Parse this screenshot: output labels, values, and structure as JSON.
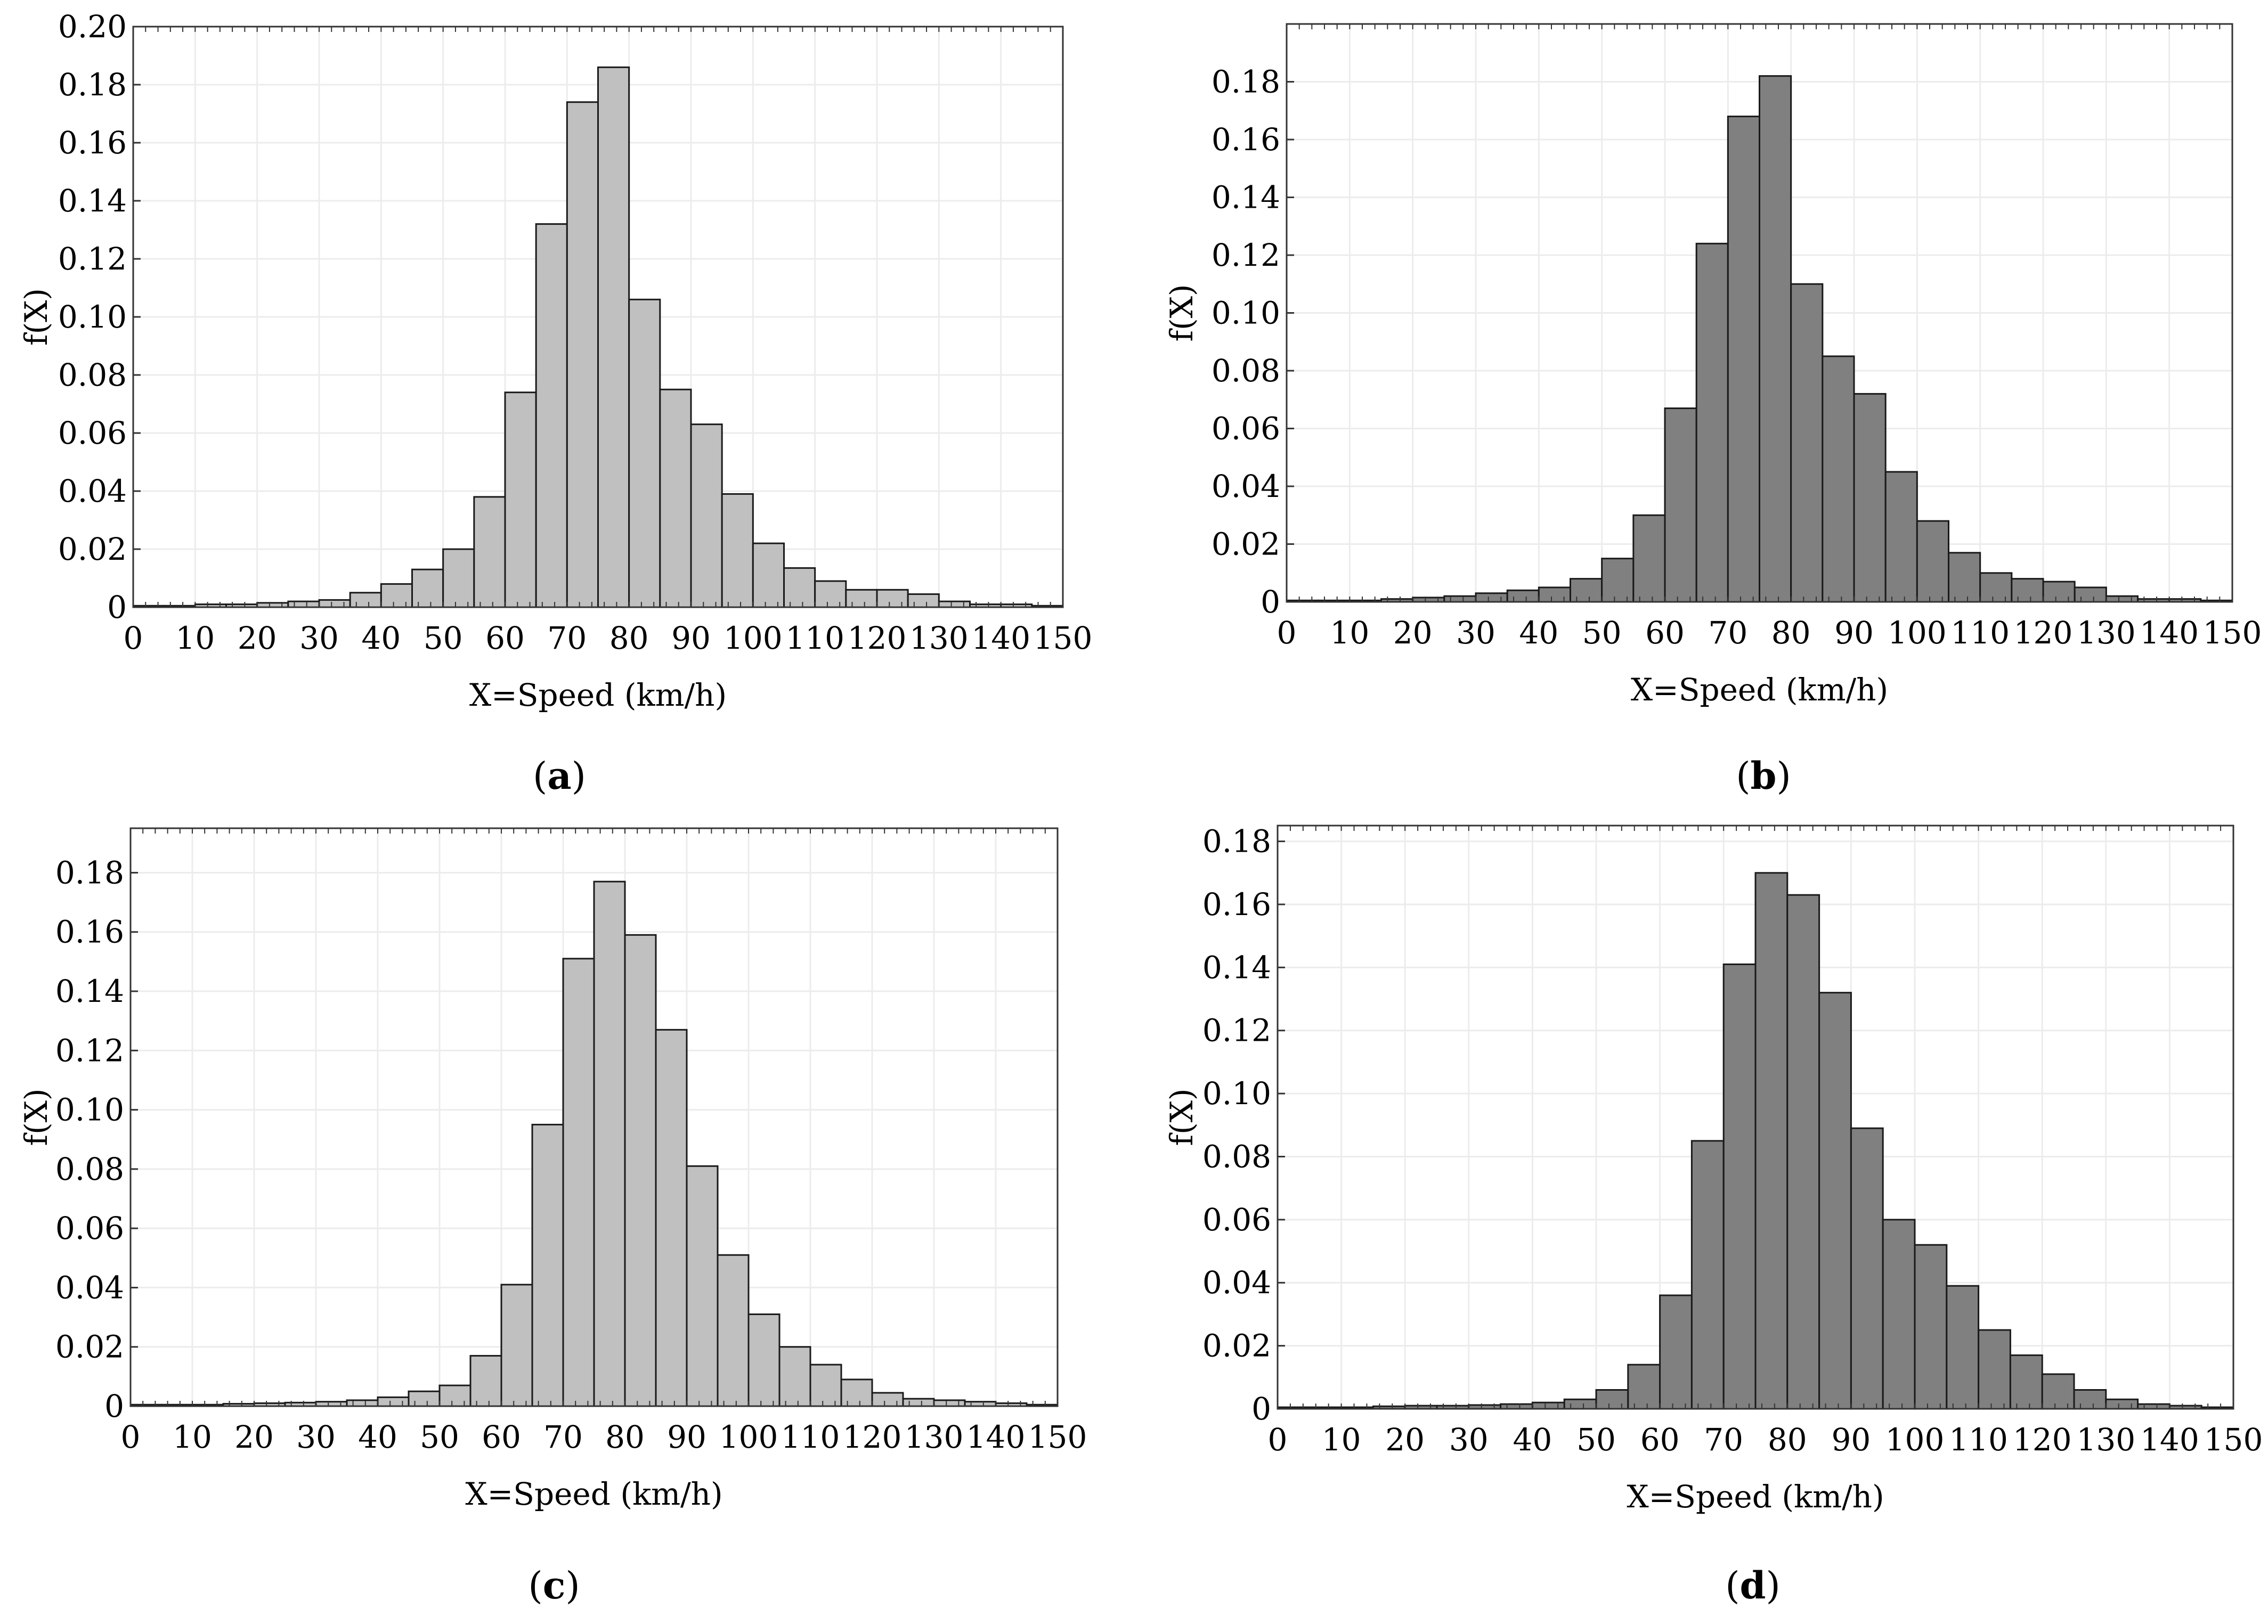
{
  "figure": {
    "panels": [
      {
        "letter": "a",
        "left_paren": "(",
        "right_paren": ")"
      },
      {
        "letter": "b",
        "left_paren": "(",
        "right_paren": ")"
      },
      {
        "letter": "c",
        "left_paren": "(",
        "right_paren": ")"
      },
      {
        "letter": "d",
        "left_paren": "(",
        "right_paren": ")"
      }
    ]
  },
  "chart_data": [
    {
      "type": "bar",
      "panel": "a",
      "title": "",
      "xlabel": "X=Speed (km/h)",
      "ylabel": "f(X)",
      "bin_width": 5,
      "xlim": [
        0,
        150
      ],
      "ylim": [
        0,
        0.2
      ],
      "xticks": [
        0,
        10,
        20,
        30,
        40,
        50,
        60,
        70,
        80,
        90,
        100,
        110,
        120,
        130,
        140,
        150
      ],
      "yticks": [
        0,
        0.02,
        0.04,
        0.06,
        0.08,
        0.1,
        0.12,
        0.14,
        0.16,
        0.18,
        0.2
      ],
      "ytick_labels": [
        "0",
        "0.02",
        "0.04",
        "0.06",
        "0.08",
        "0.10",
        "0.12",
        "0.14",
        "0.16",
        "0.18",
        "0.20"
      ],
      "fill": "#c0c0c0",
      "bin_starts": [
        0,
        5,
        10,
        15,
        20,
        25,
        30,
        35,
        40,
        45,
        50,
        55,
        60,
        65,
        70,
        75,
        80,
        85,
        90,
        95,
        100,
        105,
        110,
        115,
        120,
        125,
        130,
        135,
        140,
        145
      ],
      "values": [
        0.0005,
        0.0005,
        0.001,
        0.001,
        0.0015,
        0.002,
        0.0025,
        0.005,
        0.008,
        0.013,
        0.02,
        0.038,
        0.074,
        0.132,
        0.174,
        0.186,
        0.106,
        0.075,
        0.063,
        0.039,
        0.022,
        0.0135,
        0.009,
        0.006,
        0.006,
        0.0045,
        0.002,
        0.001,
        0.001,
        0.0005
      ]
    },
    {
      "type": "bar",
      "panel": "b",
      "title": "",
      "xlabel": "X=Speed (km/h)",
      "ylabel": "f(X)",
      "bin_width": 5,
      "xlim": [
        0,
        150
      ],
      "ylim": [
        0,
        0.2
      ],
      "xticks": [
        0,
        10,
        20,
        30,
        40,
        50,
        60,
        70,
        80,
        90,
        100,
        110,
        120,
        130,
        140,
        150
      ],
      "yticks": [
        0,
        0.02,
        0.04,
        0.06,
        0.08,
        0.1,
        0.12,
        0.14,
        0.16,
        0.18
      ],
      "ytick_labels": [
        "0",
        "0.02",
        "0.04",
        "0.06",
        "0.08",
        "0.10",
        "0.12",
        "0.14",
        "0.16",
        "0.18"
      ],
      "fill": "#808080",
      "bin_starts": [
        0,
        5,
        10,
        15,
        20,
        25,
        30,
        35,
        40,
        45,
        50,
        55,
        60,
        65,
        70,
        75,
        80,
        85,
        90,
        95,
        100,
        105,
        110,
        115,
        120,
        125,
        130,
        135,
        140,
        145
      ],
      "values": [
        0.0005,
        0.0005,
        0.0005,
        0.001,
        0.0015,
        0.002,
        0.003,
        0.004,
        0.005,
        0.008,
        0.015,
        0.03,
        0.067,
        0.124,
        0.168,
        0.182,
        0.11,
        0.085,
        0.072,
        0.045,
        0.028,
        0.017,
        0.01,
        0.008,
        0.007,
        0.005,
        0.002,
        0.001,
        0.001,
        0.0005
      ]
    },
    {
      "type": "bar",
      "panel": "c",
      "title": "",
      "xlabel": "X=Speed (km/h)",
      "ylabel": "f(X)",
      "bin_width": 5,
      "xlim": [
        0,
        150
      ],
      "ylim": [
        0,
        0.195
      ],
      "xticks": [
        0,
        10,
        20,
        30,
        40,
        50,
        60,
        70,
        80,
        90,
        100,
        110,
        120,
        130,
        140,
        150
      ],
      "yticks": [
        0,
        0.02,
        0.04,
        0.06,
        0.08,
        0.1,
        0.12,
        0.14,
        0.16,
        0.18
      ],
      "ytick_labels": [
        "0",
        "0.02",
        "0.04",
        "0.06",
        "0.08",
        "0.10",
        "0.12",
        "0.14",
        "0.16",
        "0.18"
      ],
      "fill": "#c0c0c0",
      "bin_starts": [
        0,
        5,
        10,
        15,
        20,
        25,
        30,
        35,
        40,
        45,
        50,
        55,
        60,
        65,
        70,
        75,
        80,
        85,
        90,
        95,
        100,
        105,
        110,
        115,
        120,
        125,
        130,
        135,
        140,
        145
      ],
      "values": [
        0.0005,
        0.0005,
        0.0005,
        0.0008,
        0.001,
        0.0012,
        0.0015,
        0.002,
        0.003,
        0.005,
        0.007,
        0.017,
        0.041,
        0.095,
        0.151,
        0.177,
        0.159,
        0.127,
        0.081,
        0.051,
        0.031,
        0.02,
        0.014,
        0.009,
        0.0045,
        0.0025,
        0.002,
        0.0015,
        0.001,
        0.0005
      ]
    },
    {
      "type": "bar",
      "panel": "d",
      "title": "",
      "xlabel": "X=Speed (km/h)",
      "ylabel": "f(X)",
      "bin_width": 5,
      "xlim": [
        0,
        150
      ],
      "ylim": [
        0,
        0.185
      ],
      "xticks": [
        0,
        10,
        20,
        30,
        40,
        50,
        60,
        70,
        80,
        90,
        100,
        110,
        120,
        130,
        140,
        150
      ],
      "yticks": [
        0,
        0.02,
        0.04,
        0.06,
        0.08,
        0.1,
        0.12,
        0.14,
        0.16,
        0.18
      ],
      "ytick_labels": [
        "0",
        "0.02",
        "0.04",
        "0.06",
        "0.08",
        "0.10",
        "0.12",
        "0.14",
        "0.16",
        "0.18"
      ],
      "fill": "#808080",
      "bin_starts": [
        0,
        5,
        10,
        15,
        20,
        25,
        30,
        35,
        40,
        45,
        50,
        55,
        60,
        65,
        70,
        75,
        80,
        85,
        90,
        95,
        100,
        105,
        110,
        115,
        120,
        125,
        130,
        135,
        140,
        145
      ],
      "values": [
        0.0005,
        0.0005,
        0.0005,
        0.0008,
        0.001,
        0.001,
        0.0012,
        0.0015,
        0.002,
        0.003,
        0.006,
        0.014,
        0.036,
        0.085,
        0.141,
        0.17,
        0.163,
        0.132,
        0.089,
        0.06,
        0.052,
        0.039,
        0.025,
        0.017,
        0.011,
        0.006,
        0.003,
        0.0015,
        0.001,
        0.0005
      ]
    }
  ]
}
